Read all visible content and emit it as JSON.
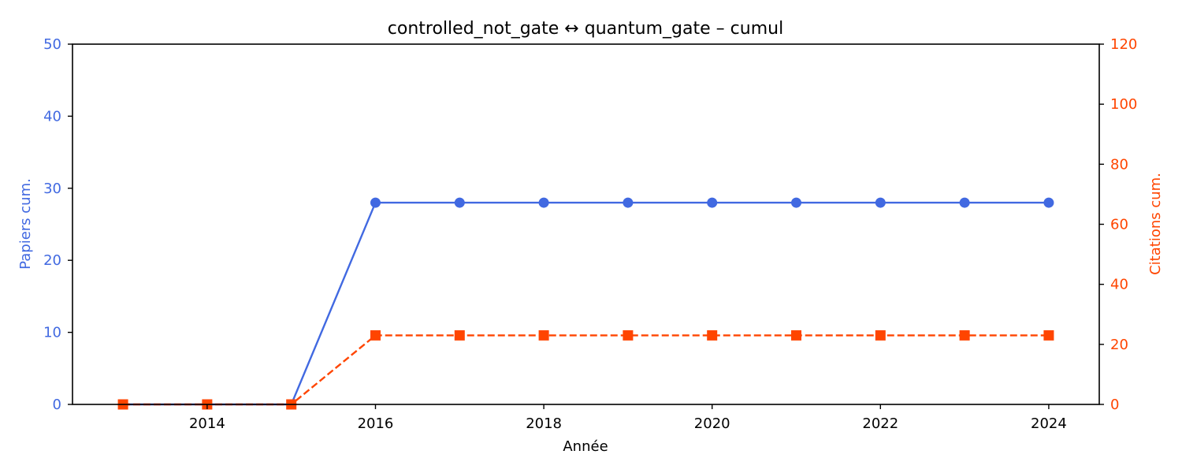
{
  "chart_data": {
    "type": "line",
    "title": "controlled_not_gate  ↔  quantum_gate  –  cumul",
    "xlabel": "Année",
    "ylabel_left": "Papiers cum.",
    "ylabel_right": "Citations cum.",
    "x": [
      2013,
      2014,
      2015,
      2016,
      2017,
      2018,
      2019,
      2020,
      2021,
      2022,
      2023,
      2024
    ],
    "x_ticks": [
      "2014",
      "2016",
      "2018",
      "2020",
      "2022",
      "2024"
    ],
    "xlim": [
      2012.4,
      2024.6
    ],
    "y_left_ticks": [
      "0",
      "10",
      "20",
      "30",
      "40",
      "50"
    ],
    "ylim_left": [
      0,
      50
    ],
    "y_right_ticks": [
      "0",
      "20",
      "40",
      "60",
      "80",
      "100",
      "120"
    ],
    "ylim_right": [
      0,
      120
    ],
    "grid": false,
    "series": [
      {
        "axis": "left",
        "color": "#4169e1",
        "marker": "circle",
        "linestyle": "solid",
        "values": [
          0,
          0,
          0,
          28,
          28,
          28,
          28,
          28,
          28,
          28,
          28,
          28
        ]
      },
      {
        "axis": "right",
        "color": "#ff4500",
        "marker": "square",
        "linestyle": "dashed",
        "values": [
          0,
          0,
          0,
          23,
          23,
          23,
          23,
          23,
          23,
          23,
          23,
          23
        ]
      }
    ]
  }
}
